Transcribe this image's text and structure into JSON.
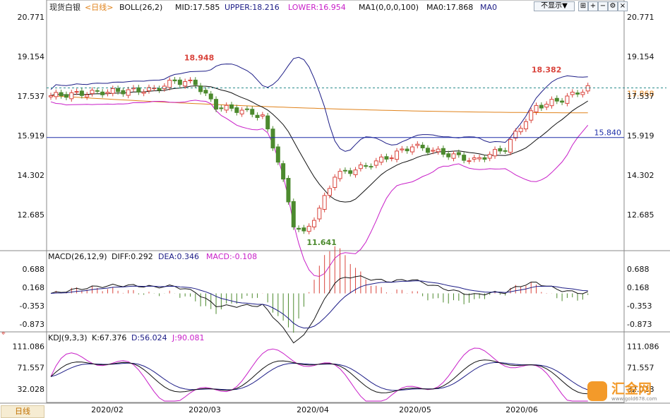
{
  "header": {
    "instrument": "现货白银",
    "period_tag": "<日线>",
    "boll_label": "BOLL(26,2)",
    "mid_label": "MID:17.585",
    "upper_label": "UPPER:18.216",
    "lower_label": "LOWER:16.954",
    "ma_label": "MA1(0,0,0,100)",
    "ma0_label": "MA0:17.868",
    "ma0_tag": "MA0",
    "hide_button": "不显示▼"
  },
  "bottom_bar": {
    "period_tab": "日线"
  },
  "watermark": {
    "text": "汇金网",
    "url": "www.gold678.com"
  },
  "colors": {
    "up": "#d9443c",
    "down": "#4c8a2e",
    "mid": "#111111",
    "upper": "#1c1c86",
    "lower": "#c81ec8",
    "ma": "#e0821a",
    "hline": "#1e2fa8",
    "dash": "#2a8c8c",
    "macd_dea": "#c81ec8",
    "kdj_j": "#c81ec8"
  },
  "chart_data": [
    {
      "type": "candlestick",
      "title": "现货白银 日线",
      "x_ticks": [
        "2020/02",
        "2020/03",
        "2020/04",
        "2020/05",
        "2020/06"
      ],
      "y_ticks": [
        "20.771",
        "19.154",
        "17.537",
        "15.919",
        "14.302",
        "12.685"
      ],
      "ylim": [
        11.3,
        21.0
      ],
      "annotations": {
        "high": "18.948",
        "low": "11.641",
        "recent_high": "18.382",
        "hline_value": "15.840",
        "last_price": "17.868"
      },
      "bands": {
        "mid": "17.585",
        "upper": "18.216",
        "lower": "16.954",
        "ma100": "17.868"
      },
      "horizontal_line": 15.84,
      "last_price": 17.868
    },
    {
      "type": "bar+line",
      "title": "MACD(26,12,9)",
      "series": [
        {
          "name": "DIFF",
          "label": "DIFF:0.292"
        },
        {
          "name": "DEA",
          "label": "DEA:0.346"
        },
        {
          "name": "MACD",
          "label": "MACD:-0.108"
        }
      ],
      "y_ticks": [
        "0.688",
        "0.168",
        "-0.353",
        "-0.873"
      ],
      "ylim": [
        -1.05,
        0.95
      ]
    },
    {
      "type": "line",
      "title": "KDJ(9,3,3)",
      "series": [
        {
          "name": "K",
          "label": "K:67.376"
        },
        {
          "name": "D",
          "label": "D:56.024"
        },
        {
          "name": "J",
          "label": "J:90.081"
        }
      ],
      "y_ticks": [
        "111.086",
        "71.557",
        "32.028"
      ],
      "ylim": [
        10,
        122
      ]
    }
  ]
}
